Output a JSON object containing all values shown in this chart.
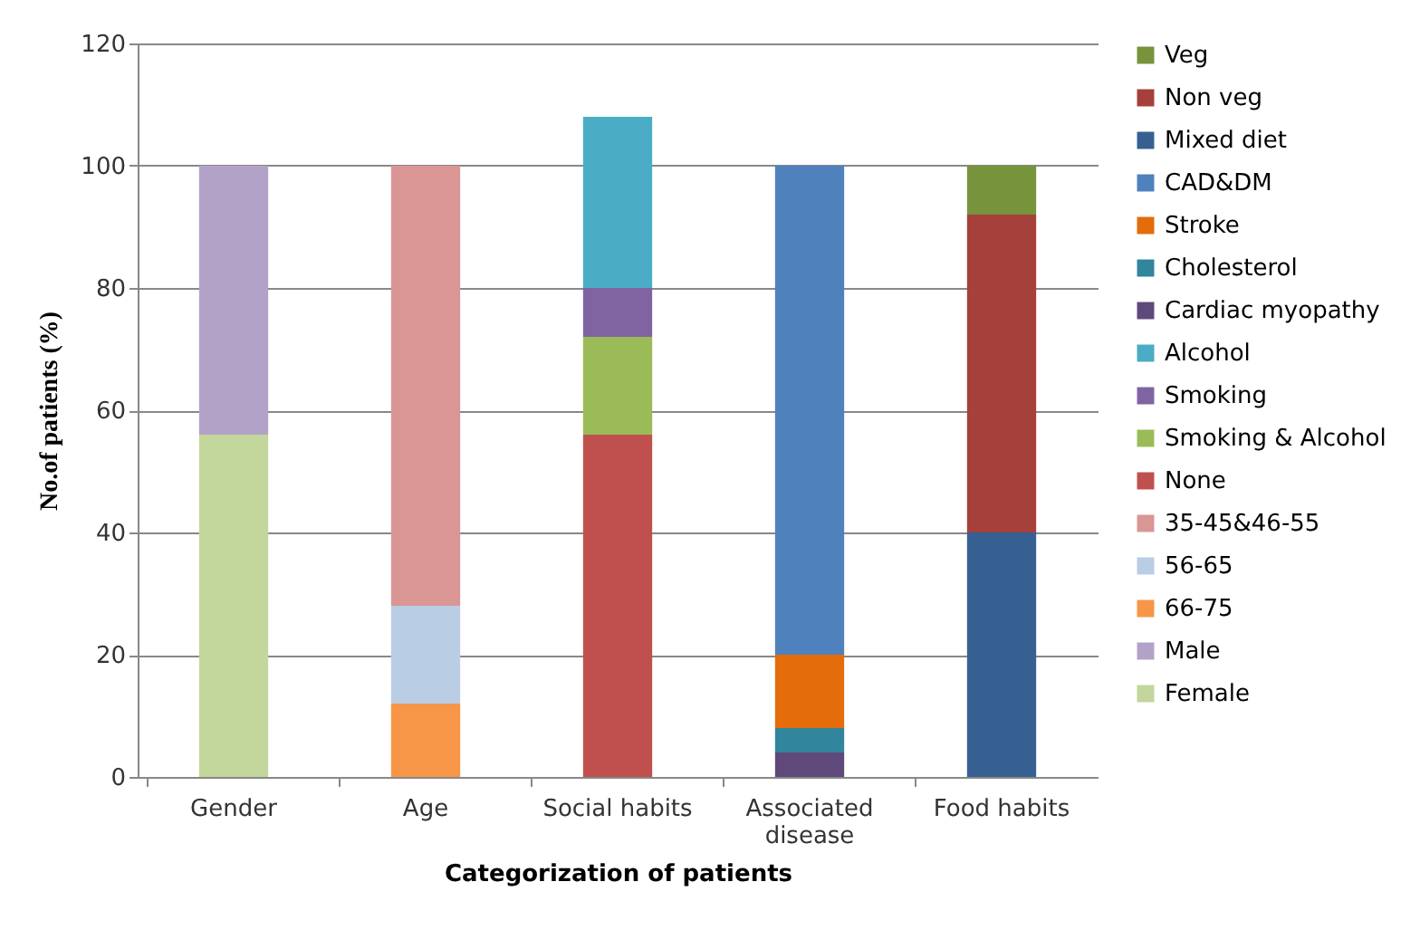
{
  "chart_data": {
    "type": "bar",
    "stacked": true,
    "xlabel": "Categorization of patients",
    "ylabel": "No.of patients (%)",
    "categories": [
      "Gender",
      "Age",
      "Social habits",
      "Associated disease",
      "Food habits"
    ],
    "series": [
      {
        "name": "Female",
        "color": "#c3d69b",
        "values": [
          56,
          null,
          null,
          null,
          null
        ]
      },
      {
        "name": "Male",
        "color": "#b3a2c7",
        "values": [
          44,
          null,
          null,
          null,
          null
        ]
      },
      {
        "name": "66-75",
        "color": "#f79646",
        "values": [
          null,
          12,
          null,
          null,
          null
        ]
      },
      {
        "name": "56-65",
        "color": "#b9cde5",
        "values": [
          null,
          16,
          null,
          null,
          null
        ]
      },
      {
        "name": "35-45&46-55",
        "color": "#d99694",
        "values": [
          null,
          72,
          null,
          null,
          null
        ]
      },
      {
        "name": "None",
        "color": "#c0504d",
        "values": [
          null,
          null,
          56,
          null,
          null
        ]
      },
      {
        "name": "Smoking & Alcohol",
        "color": "#9bbb59",
        "values": [
          null,
          null,
          16,
          null,
          null
        ]
      },
      {
        "name": "Smoking",
        "color": "#8064a2",
        "values": [
          null,
          null,
          8,
          null,
          null
        ]
      },
      {
        "name": "Alcohol",
        "color": "#4bacc6",
        "values": [
          null,
          null,
          28,
          null,
          null
        ]
      },
      {
        "name": "Cardiac myopathy",
        "color": "#5f497a",
        "values": [
          null,
          null,
          null,
          4,
          null
        ]
      },
      {
        "name": "Cholesterol",
        "color": "#31859c",
        "values": [
          null,
          null,
          null,
          4,
          null
        ]
      },
      {
        "name": "Stroke",
        "color": "#e46c0a",
        "values": [
          null,
          null,
          null,
          12,
          null
        ]
      },
      {
        "name": "CAD&DM",
        "color": "#4f81bd",
        "values": [
          null,
          null,
          null,
          80,
          null
        ]
      },
      {
        "name": "Mixed diet",
        "color": "#376092",
        "values": [
          null,
          null,
          null,
          null,
          40
        ]
      },
      {
        "name": "Non veg",
        "color": "#a5403b",
        "values": [
          null,
          null,
          null,
          null,
          52
        ]
      },
      {
        "name": "Veg",
        "color": "#77933c",
        "values": [
          null,
          null,
          null,
          null,
          8
        ]
      }
    ],
    "ylim": [
      0,
      120
    ],
    "yticks": [
      0,
      20,
      40,
      60,
      80,
      100,
      120
    ],
    "grid": "y",
    "legend": "right"
  }
}
